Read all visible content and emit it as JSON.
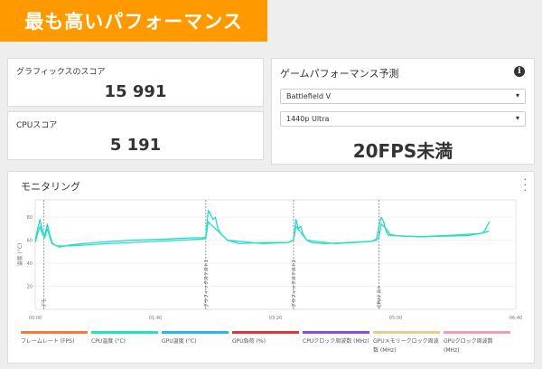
{
  "banner": {
    "title": "最も高いパフォーマンス"
  },
  "graphics": {
    "label": "グラフィックスのスコア",
    "value": "15 991"
  },
  "cpu": {
    "label": "CPUスコア",
    "value": "5 191"
  },
  "perf": {
    "title": "ゲームパフォーマンス予測",
    "game": "Battlefield V",
    "resolution": "1440p Ultra",
    "fps": "20FPS未満"
  },
  "monitor": {
    "title": "モニタリング"
  },
  "chart_data": {
    "type": "line",
    "ylabel": "温度 (°C)",
    "yticks": [
      "80",
      "60",
      "40",
      "20"
    ],
    "ylim": [
      0,
      95
    ],
    "xticks": [
      "00:00",
      "01:40",
      "03:20",
      "05:00",
      "06:40"
    ],
    "xlim_seconds": [
      0,
      400
    ],
    "markers": [
      {
        "label": "デモ",
        "t": 7
      },
      {
        "label": "グラフィックステスト1",
        "t": 142
      },
      {
        "label": "グラフィックステスト2",
        "t": 215
      },
      {
        "label": "CPUテスト",
        "t": 286
      }
    ],
    "series": [
      {
        "name": "GPU温度 (°C)",
        "color": "#2bd4d4",
        "t": [
          0,
          2,
          4,
          6,
          8,
          10,
          12,
          14,
          16,
          18,
          20,
          30,
          50,
          80,
          110,
          130,
          140,
          142,
          144,
          146,
          148,
          150,
          152,
          155,
          160,
          170,
          190,
          210,
          213,
          215,
          217,
          219,
          221,
          223,
          226,
          230,
          240,
          260,
          280,
          284,
          286,
          288,
          290,
          292,
          294,
          296,
          300,
          320,
          340,
          360,
          372,
          374,
          378
        ],
        "values": [
          60,
          70,
          78,
          68,
          64,
          74,
          65,
          58,
          56,
          55,
          54,
          56,
          58,
          60,
          61,
          62,
          62,
          63,
          86,
          82,
          78,
          80,
          70,
          65,
          60,
          57,
          58,
          58,
          59,
          60,
          78,
          70,
          72,
          65,
          60,
          58,
          57,
          58,
          59,
          60,
          72,
          80,
          76,
          68,
          64,
          65,
          64,
          63,
          64,
          65,
          66,
          68,
          76
        ]
      },
      {
        "name": "CPU温度 (°C)",
        "color": "#24e3b6",
        "t": [
          0,
          2,
          4,
          6,
          8,
          10,
          12,
          14,
          18,
          30,
          60,
          100,
          140,
          142,
          144,
          148,
          152,
          160,
          190,
          210,
          215,
          217,
          220,
          226,
          250,
          280,
          286,
          288,
          292,
          296,
          320,
          360,
          372,
          378
        ],
        "values": [
          58,
          66,
          72,
          65,
          62,
          70,
          63,
          57,
          55,
          55,
          57,
          59,
          61,
          62,
          76,
          72,
          68,
          60,
          57,
          58,
          60,
          72,
          68,
          60,
          57,
          59,
          62,
          74,
          70,
          64,
          63,
          64,
          66,
          68
        ]
      }
    ],
    "legend": [
      {
        "name": "フレームレート (FPS)",
        "color": "#f07c3c"
      },
      {
        "name": "CPU温度 (°C)",
        "color": "#24e3b6"
      },
      {
        "name": "GPU温度 (°C)",
        "color": "#2bb7e8"
      },
      {
        "name": "GPU負荷 (%)",
        "color": "#d63a3a"
      },
      {
        "name": "CPUクロック周波数 (MHz)",
        "color": "#8a4fd6"
      },
      {
        "name": "GPUメモリークロック周波数 (MHz)",
        "color": "#e6cf8c"
      },
      {
        "name": "GPUクロック周波数 (MHz)",
        "color": "#f29bbd"
      }
    ]
  }
}
